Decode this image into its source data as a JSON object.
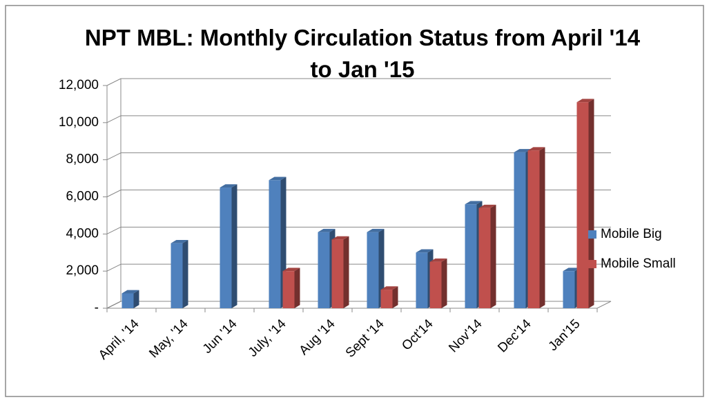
{
  "chart_data": {
    "type": "bar",
    "title": "NPT MBL: Monthly Circulation Status from April '14 to Jan '15",
    "categories": [
      "April, '14",
      "May, '14",
      "Jun '14",
      "July, '14",
      "Aug '14",
      "Sept '14",
      "Oct'14",
      "Nov'14",
      "Dec'14",
      "Jan'15"
    ],
    "series": [
      {
        "name": "Mobile Big",
        "color": "#4f81bd",
        "values": [
          800,
          3500,
          6500,
          6900,
          4100,
          4100,
          3000,
          5600,
          8400,
          2000
        ]
      },
      {
        "name": "Mobile Small",
        "color": "#c0504d",
        "values": [
          null,
          null,
          null,
          2000,
          3700,
          1000,
          2500,
          5400,
          8500,
          11100
        ]
      }
    ],
    "ylim": [
      0,
      12000
    ],
    "yticks": [
      {
        "value": 0,
        "label": "-"
      },
      {
        "value": 2000,
        "label": "2,000"
      },
      {
        "value": 4000,
        "label": "4,000"
      },
      {
        "value": 6000,
        "label": "6,000"
      },
      {
        "value": 8000,
        "label": "8,000"
      },
      {
        "value": 10000,
        "label": "10,000"
      },
      {
        "value": 12000,
        "label": "12,000"
      }
    ],
    "grid": true,
    "legend": "right"
  }
}
